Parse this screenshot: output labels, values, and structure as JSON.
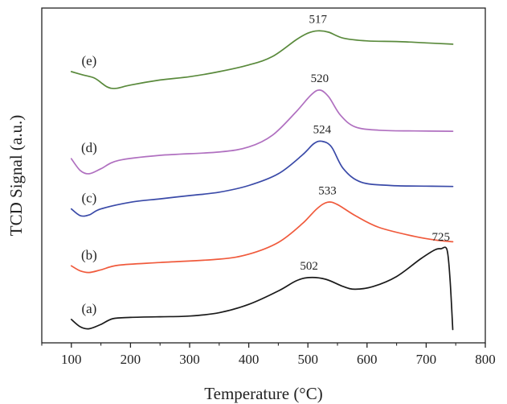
{
  "chart_data": {
    "type": "line",
    "title": "",
    "xlabel": "Temperature (°C)",
    "ylabel": "TCD Signal (a.u.)",
    "xlim": [
      50,
      800
    ],
    "ylim": [
      0,
      100
    ],
    "x_ticks": [
      100,
      200,
      300,
      400,
      500,
      600,
      700,
      800
    ],
    "y_ticks_shown": false,
    "grid": false,
    "legend": "none",
    "series": [
      {
        "name": "(a)",
        "color": "#1a1a1a",
        "points": [
          [
            100,
            7
          ],
          [
            115,
            4.8
          ],
          [
            130,
            4.2
          ],
          [
            150,
            5.5
          ],
          [
            170,
            7.2
          ],
          [
            200,
            7.6
          ],
          [
            250,
            7.8
          ],
          [
            300,
            8.0
          ],
          [
            350,
            9.0
          ],
          [
            400,
            11.5
          ],
          [
            450,
            15.5
          ],
          [
            480,
            18.5
          ],
          [
            502,
            19.5
          ],
          [
            530,
            19.0
          ],
          [
            560,
            16.8
          ],
          [
            580,
            16.0
          ],
          [
            610,
            16.8
          ],
          [
            650,
            19.8
          ],
          [
            690,
            25.0
          ],
          [
            715,
            27.8
          ],
          [
            725,
            28.1
          ],
          [
            735,
            27.9
          ],
          [
            740,
            20
          ],
          [
            745,
            4
          ]
        ],
        "peaks": [
          {
            "x": 502,
            "label": "502"
          },
          {
            "x": 725,
            "label": "725"
          }
        ]
      },
      {
        "name": "(b)",
        "color": "#f05a3c",
        "points": [
          [
            100,
            23
          ],
          [
            115,
            21.5
          ],
          [
            130,
            21
          ],
          [
            150,
            21.8
          ],
          [
            180,
            23.2
          ],
          [
            250,
            24
          ],
          [
            350,
            25
          ],
          [
            400,
            26.5
          ],
          [
            450,
            30
          ],
          [
            490,
            35.5
          ],
          [
            515,
            40
          ],
          [
            533,
            42
          ],
          [
            550,
            41.3
          ],
          [
            580,
            38
          ],
          [
            620,
            34.5
          ],
          [
            680,
            31.8
          ],
          [
            720,
            30.6
          ],
          [
            745,
            30.2
          ]
        ],
        "peaks": [
          {
            "x": 533,
            "label": "533"
          }
        ]
      },
      {
        "name": "(c)",
        "color": "#3a4aa8",
        "points": [
          [
            100,
            40
          ],
          [
            115,
            38
          ],
          [
            130,
            38.2
          ],
          [
            150,
            40
          ],
          [
            200,
            42
          ],
          [
            250,
            43
          ],
          [
            300,
            44
          ],
          [
            350,
            45
          ],
          [
            400,
            47
          ],
          [
            450,
            50.5
          ],
          [
            490,
            56
          ],
          [
            510,
            59.5
          ],
          [
            524,
            60.2
          ],
          [
            540,
            58.5
          ],
          [
            560,
            52
          ],
          [
            590,
            48
          ],
          [
            640,
            47
          ],
          [
            700,
            46.8
          ],
          [
            745,
            46.7
          ]
        ],
        "peaks": [
          {
            "x": 524,
            "label": "524"
          }
        ]
      },
      {
        "name": "(d)",
        "color": "#b070c0",
        "points": [
          [
            100,
            55
          ],
          [
            115,
            51.5
          ],
          [
            130,
            50.5
          ],
          [
            150,
            52
          ],
          [
            180,
            54.5
          ],
          [
            250,
            56
          ],
          [
            350,
            57
          ],
          [
            400,
            58.5
          ],
          [
            440,
            62
          ],
          [
            480,
            69
          ],
          [
            505,
            74
          ],
          [
            520,
            75.5
          ],
          [
            535,
            73.5
          ],
          [
            555,
            68
          ],
          [
            580,
            64.5
          ],
          [
            620,
            63.5
          ],
          [
            680,
            63.3
          ],
          [
            745,
            63.2
          ]
        ],
        "peaks": [
          {
            "x": 520,
            "label": "520"
          }
        ]
      },
      {
        "name": "(e)",
        "color": "#5a8a3c",
        "points": [
          [
            100,
            81
          ],
          [
            120,
            80
          ],
          [
            140,
            79
          ],
          [
            160,
            76.5
          ],
          [
            175,
            76
          ],
          [
            200,
            77
          ],
          [
            250,
            78.5
          ],
          [
            300,
            79.5
          ],
          [
            350,
            81
          ],
          [
            400,
            83
          ],
          [
            440,
            85.5
          ],
          [
            480,
            90.5
          ],
          [
            500,
            92.5
          ],
          [
            517,
            93.2
          ],
          [
            535,
            92.8
          ],
          [
            560,
            91
          ],
          [
            600,
            90.2
          ],
          [
            650,
            90
          ],
          [
            700,
            89.6
          ],
          [
            745,
            89.2
          ]
        ],
        "peaks": [
          {
            "x": 517,
            "label": "517"
          }
        ]
      }
    ]
  }
}
